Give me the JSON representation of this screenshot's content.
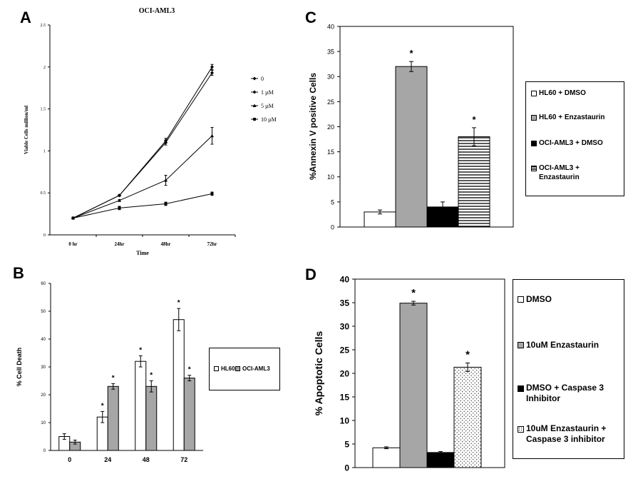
{
  "panels": {
    "A": {
      "letter": "A"
    },
    "B": {
      "letter": "B"
    },
    "C": {
      "letter": "C"
    },
    "D": {
      "letter": "D"
    }
  },
  "colors": {
    "white_fill": "#ffffff",
    "gray_fill": "#a6a6a6",
    "black_fill": "#000000",
    "axis": "#000000"
  },
  "chart_data": [
    {
      "id": "A",
      "type": "line",
      "title": "OCI-AML3",
      "xlabel": "Time",
      "ylabel": "Viable Cells million/ml",
      "categories": [
        "0 hr",
        "24hr",
        "48hr",
        "72hr"
      ],
      "ylim": [
        0,
        2.5
      ],
      "yticks": [
        "0",
        "0.5",
        "1",
        "1.5",
        "2",
        "2.5"
      ],
      "series": [
        {
          "name": "0",
          "marker": "diamond",
          "values": [
            0.2,
            0.47,
            1.12,
            2.0
          ],
          "errors": [
            0.0,
            0.01,
            0.03,
            0.03
          ]
        },
        {
          "name": "1 µM",
          "marker": "diamond",
          "values": [
            0.2,
            0.47,
            1.1,
            1.93
          ],
          "errors": [
            0.0,
            0.01,
            0.03,
            0.03
          ]
        },
        {
          "name": "5 µM",
          "marker": "triangle",
          "values": [
            0.2,
            0.41,
            0.65,
            1.18
          ],
          "errors": [
            0.0,
            0.01,
            0.06,
            0.1
          ]
        },
        {
          "name": "10 µM",
          "marker": "square",
          "values": [
            0.2,
            0.32,
            0.37,
            0.49
          ],
          "errors": [
            0.0,
            0.02,
            0.02,
            0.02
          ]
        }
      ],
      "grid": false,
      "legend": "right"
    },
    {
      "id": "B",
      "type": "bar",
      "ylabel": "% Cell Death",
      "categories": [
        "0",
        "24",
        "48",
        "72"
      ],
      "ylim": [
        0,
        60
      ],
      "yticks": [
        "0",
        "10",
        "20",
        "30",
        "40",
        "50",
        "60"
      ],
      "series": [
        {
          "name": "HL60",
          "fill": "#ffffff",
          "values": [
            5,
            12,
            32,
            47
          ],
          "errors": [
            1.0,
            2.0,
            2.0,
            4.0
          ],
          "stars": [
            false,
            true,
            true,
            true
          ]
        },
        {
          "name": "OCI-AML3",
          "fill": "#a6a6a6",
          "values": [
            3,
            23,
            23,
            26
          ],
          "errors": [
            0.7,
            1.0,
            2.0,
            1.0
          ],
          "stars": [
            false,
            true,
            true,
            true
          ]
        }
      ],
      "star_symbol": "*",
      "grid": false,
      "legend": "right"
    },
    {
      "id": "C",
      "type": "bar",
      "ylabel": "%Annexin V positive Cells",
      "ylim": [
        0,
        40
      ],
      "yticks": [
        "0",
        "5",
        "10",
        "15",
        "20",
        "25",
        "30",
        "35",
        "40"
      ],
      "bars": [
        {
          "name": "HL60 + DMSO",
          "value": 3,
          "error": 0.4,
          "fill": "white",
          "star": false
        },
        {
          "name": "HL60 + Enzastaurin",
          "value": 32,
          "error": 1.0,
          "fill": "gray",
          "star": true
        },
        {
          "name": "OCI-AML3 + DMSO",
          "value": 4,
          "error": 1.0,
          "fill": "black",
          "star": false
        },
        {
          "name": "OCI-AML3 + Enzastaurin",
          "value": 18,
          "error": 1.8,
          "fill": "hstripes",
          "star": true
        }
      ],
      "legend_lines": [
        [
          "HL60 + DMSO"
        ],
        [
          "HL60 + Enzastaurin"
        ],
        [
          "OCI-AML3 + DMSO"
        ],
        [
          "OCI-AML3 +",
          "Enzastaurin"
        ]
      ],
      "star_symbol": "*",
      "grid": false,
      "legend": "right"
    },
    {
      "id": "D",
      "type": "bar",
      "ylabel": "% Apoptotic Cells",
      "ylim": [
        0,
        40
      ],
      "yticks": [
        "0",
        "5",
        "10",
        "15",
        "20",
        "25",
        "30",
        "35",
        "40"
      ],
      "bars": [
        {
          "name": "DMSO",
          "value": 4.2,
          "error": 0.2,
          "fill": "white",
          "star": false
        },
        {
          "name": "10uM Enzastaurin",
          "value": 34.9,
          "error": 0.4,
          "fill": "gray",
          "star": true
        },
        {
          "name": "DMSO + Caspase 3 Inhibitor",
          "value": 3.2,
          "error": 0.2,
          "fill": "black",
          "star": false
        },
        {
          "name": "10uM Enzastaurin + Caspase 3 inhibitor",
          "value": 21.3,
          "error": 0.9,
          "fill": "dots",
          "star": true
        }
      ],
      "legend_lines": [
        [
          "DMSO"
        ],
        [
          "10uM Enzastaurin"
        ],
        [
          "DMSO + Caspase 3",
          "Inhibitor"
        ],
        [
          "10uM Enzastaurin +",
          "Caspase 3 inhibitor"
        ]
      ],
      "star_symbol": "*",
      "grid": false,
      "legend": "right"
    }
  ]
}
